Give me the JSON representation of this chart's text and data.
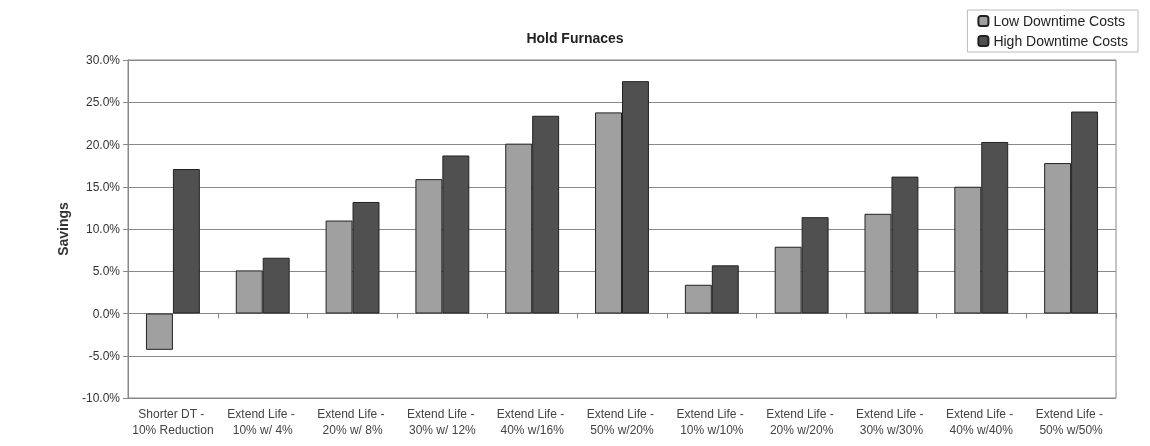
{
  "chart_data": {
    "type": "bar",
    "title": "Hold Furnaces",
    "ylabel": "Savings",
    "categories": [
      "Shorter DT - 10% Reduction",
      "Extend Life - 10% w/ 4%",
      "Extend Life - 20% w/ 8%",
      "Extend Life - 30% w/ 12%",
      "Extend Life - 40% w/16%",
      "Extend Life - 50% w/20%",
      "Extend Life - 10% w/10%",
      "Extend Life - 20% w/20%",
      "Extend Life - 30% w/30%",
      "Extend Life - 40% w/40%",
      "Extend Life - 50% w/50%"
    ],
    "series": [
      {
        "name": "Low Downtime Costs",
        "color": "#a0a0a0",
        "values": [
          -4.3,
          5.1,
          11.0,
          15.9,
          20.1,
          23.8,
          3.4,
          7.9,
          11.8,
          15.0,
          17.8
        ]
      },
      {
        "name": "High Downtime Costs",
        "color": "#505050",
        "values": [
          17.1,
          6.6,
          13.2,
          18.7,
          23.4,
          27.5,
          5.7,
          11.4,
          16.2,
          20.3,
          23.9
        ]
      }
    ],
    "ylim": [
      -10,
      30
    ],
    "yticks": [
      {
        "value": -10,
        "label": "-10.0%"
      },
      {
        "value": -5,
        "label": "-5.0%"
      },
      {
        "value": 0,
        "label": "0.0%"
      },
      {
        "value": 5,
        "label": "5.0%"
      },
      {
        "value": 10,
        "label": "10.0%"
      },
      {
        "value": 15,
        "label": "15.0%"
      },
      {
        "value": 20,
        "label": "20.0%"
      },
      {
        "value": 25,
        "label": "25.0%"
      },
      {
        "value": 30,
        "label": "30.0%"
      }
    ],
    "grid": "y",
    "legend": "top right"
  }
}
